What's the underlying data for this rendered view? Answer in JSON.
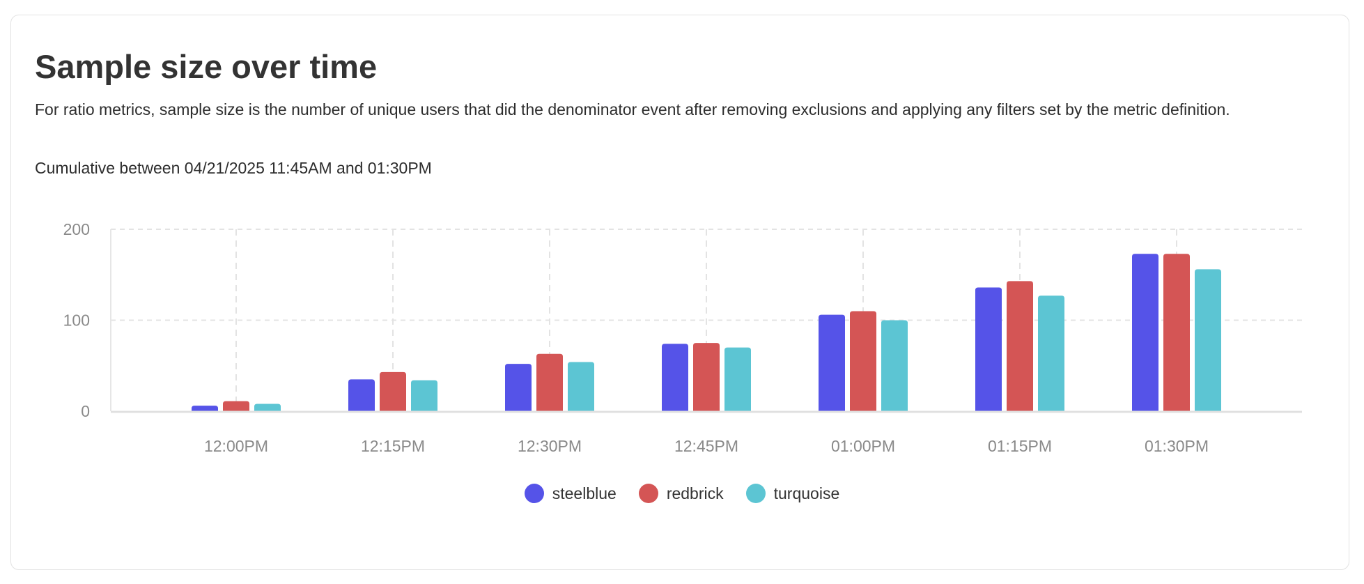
{
  "card": {
    "title": "Sample size over time",
    "description": "For ratio metrics, sample size is the number of unique users that did the denominator event after removing exclusions and applying any filters set by the metric definition.",
    "range": "Cumulative between 04/21/2025 11:45AM and 01:30PM"
  },
  "chart_data": {
    "type": "bar",
    "categories": [
      "12:00PM",
      "12:15PM",
      "12:30PM",
      "12:45PM",
      "01:00PM",
      "01:15PM",
      "01:30PM"
    ],
    "series": [
      {
        "name": "steelblue",
        "color": "#5553e8",
        "values": [
          6,
          35,
          52,
          74,
          106,
          136,
          173
        ]
      },
      {
        "name": "redbrick",
        "color": "#d45555",
        "values": [
          11,
          43,
          63,
          75,
          110,
          143,
          173
        ]
      },
      {
        "name": "turquoise",
        "color": "#5cc5d3",
        "values": [
          8,
          34,
          54,
          70,
          100,
          127,
          156
        ]
      }
    ],
    "yticks": [
      "0",
      "100",
      "200"
    ],
    "ylim": [
      0,
      200
    ],
    "grid": true,
    "legend_position": "bottom"
  }
}
